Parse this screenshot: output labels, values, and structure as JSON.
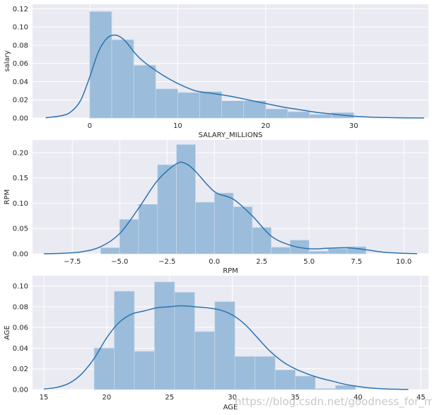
{
  "chart_data": [
    {
      "type": "histogram",
      "xlabel": "SALARY_MILLIONS",
      "ylabel": "salary",
      "xlim": [
        -6.5,
        38.5
      ],
      "ylim": [
        0,
        0.125
      ],
      "xticks": [
        0,
        10,
        20,
        30
      ],
      "yticks": [
        0.0,
        0.02,
        0.04,
        0.06,
        0.08,
        0.1,
        0.12
      ],
      "ytick_labels": [
        "0.00",
        "0.02",
        "0.04",
        "0.06",
        "0.08",
        "0.10",
        "0.12"
      ],
      "bin_edges": [
        0,
        2.5,
        5,
        7.5,
        10,
        12.5,
        15,
        17.5,
        20,
        22.5,
        25,
        27.5,
        30
      ],
      "bar_values": [
        0.117,
        0.086,
        0.058,
        0.032,
        0.028,
        0.029,
        0.019,
        0.019,
        0.01,
        0.007,
        0.004,
        0.006
      ],
      "kde_x": [
        -5,
        -3,
        -2,
        -1,
        0,
        1,
        2,
        3,
        4,
        5,
        6,
        8,
        10,
        12,
        14,
        16,
        18,
        20,
        22,
        24,
        26,
        28,
        30,
        32,
        34,
        36,
        38
      ],
      "kde_y": [
        0.0003,
        0.003,
        0.008,
        0.02,
        0.045,
        0.073,
        0.088,
        0.091,
        0.085,
        0.073,
        0.063,
        0.049,
        0.038,
        0.03,
        0.027,
        0.024,
        0.02,
        0.016,
        0.012,
        0.009,
        0.006,
        0.004,
        0.002,
        0.001,
        0.0005,
        0.0002,
        0.0001
      ]
    },
    {
      "type": "histogram",
      "xlabel": "RPM",
      "ylabel": "RPM",
      "xlim": [
        -9.6,
        11.3
      ],
      "ylim": [
        0,
        0.225
      ],
      "xticks": [
        -7.5,
        -5.0,
        -2.5,
        0.0,
        2.5,
        5.0,
        7.5,
        10.0
      ],
      "xtick_labels": [
        "−7.5",
        "−5.0",
        "−2.5",
        "0.0",
        "2.5",
        "5.0",
        "7.5",
        "10.0"
      ],
      "yticks": [
        0.0,
        0.05,
        0.1,
        0.15,
        0.2
      ],
      "ytick_labels": [
        "0.00",
        "0.05",
        "0.10",
        "0.15",
        "0.20"
      ],
      "bin_edges": [
        -6,
        -5,
        -4,
        -3,
        -2,
        -1,
        0,
        1,
        2,
        3,
        4,
        5,
        6,
        7,
        8
      ],
      "bar_values": [
        0.012,
        0.068,
        0.098,
        0.176,
        0.216,
        0.102,
        0.12,
        0.093,
        0.052,
        0.013,
        0.027,
        0.005,
        0.01,
        0.014,
        0.005
      ],
      "kde_x": [
        -9,
        -8,
        -7,
        -6,
        -5,
        -4,
        -3,
        -2,
        -1.5,
        -1,
        0,
        1,
        2,
        3,
        4,
        5,
        6,
        7,
        8,
        9,
        10,
        10.7
      ],
      "kde_y": [
        0.0001,
        0.001,
        0.004,
        0.014,
        0.04,
        0.09,
        0.145,
        0.178,
        0.178,
        0.163,
        0.123,
        0.108,
        0.075,
        0.035,
        0.017,
        0.01,
        0.011,
        0.012,
        0.008,
        0.003,
        0.001,
        0.0002
      ]
    },
    {
      "type": "histogram",
      "xlabel": "AGE",
      "ylabel": "AGE",
      "xlim": [
        14.1,
        45.6
      ],
      "ylim": [
        0,
        0.11
      ],
      "xticks": [
        15,
        20,
        25,
        30,
        35,
        40,
        45
      ],
      "yticks": [
        0.0,
        0.02,
        0.04,
        0.06,
        0.08,
        0.1
      ],
      "ytick_labels": [
        "0.00",
        "0.02",
        "0.04",
        "0.06",
        "0.08",
        "0.10"
      ],
      "bin_edges": [
        19,
        20.6,
        22.2,
        23.8,
        25.4,
        27.0,
        28.6,
        30.2,
        31.8,
        33.4,
        35.0,
        36.6,
        38.2,
        39.8
      ],
      "bar_values": [
        0.04,
        0.095,
        0.037,
        0.104,
        0.094,
        0.056,
        0.085,
        0.032,
        0.032,
        0.019,
        0.013,
        0.001,
        0.004
      ],
      "kde_x": [
        15,
        16,
        17,
        18,
        19,
        20,
        21,
        22,
        23,
        24,
        25,
        26,
        27,
        28,
        29,
        30,
        31,
        32,
        33,
        34,
        35,
        36,
        37,
        38,
        39,
        40,
        41,
        42,
        43,
        44
      ],
      "kde_y": [
        0.0005,
        0.002,
        0.006,
        0.015,
        0.03,
        0.05,
        0.065,
        0.073,
        0.076,
        0.079,
        0.08,
        0.081,
        0.08,
        0.079,
        0.077,
        0.072,
        0.063,
        0.05,
        0.037,
        0.027,
        0.02,
        0.015,
        0.011,
        0.008,
        0.005,
        0.003,
        0.0015,
        0.0007,
        0.0003,
        0.0001
      ]
    }
  ],
  "watermark": "https://blog.csdn.net/goodness_for_me",
  "colors": {
    "axes_background": "#eaeaf2",
    "grid": "#ffffff",
    "bar_fill": "#9bbcda",
    "bar_edge": "#c5d7e9",
    "kde_line": "#2b74b0",
    "text": "#262626"
  }
}
